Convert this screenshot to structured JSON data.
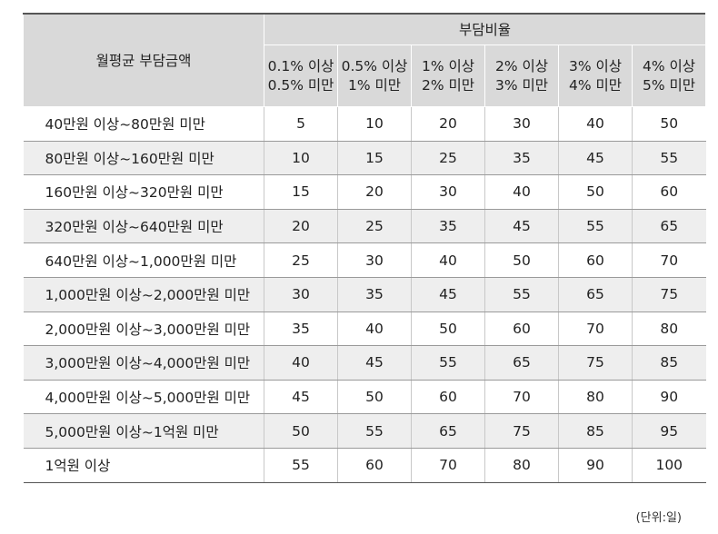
{
  "header": {
    "row_label": "월평균 부담금액",
    "group_label": "부담비율",
    "columns": [
      {
        "line1": "0.1% 이상",
        "line2": "0.5% 미만"
      },
      {
        "line1": "0.5% 이상",
        "line2": "1% 미만"
      },
      {
        "line1": "1% 이상",
        "line2": "2% 미만"
      },
      {
        "line1": "2% 이상",
        "line2": "3% 미만"
      },
      {
        "line1": "3% 이상",
        "line2": "4% 미만"
      },
      {
        "line1": "4% 이상",
        "line2": "5% 미만"
      }
    ]
  },
  "rows": [
    {
      "label": "40만원 이상~80만원 미만",
      "values": [
        "5",
        "10",
        "20",
        "30",
        "40",
        "50"
      ]
    },
    {
      "label": "80만원 이상~160만원 미만",
      "values": [
        "10",
        "15",
        "25",
        "35",
        "45",
        "55"
      ]
    },
    {
      "label": "160만원 이상~320만원 미만",
      "values": [
        "15",
        "20",
        "30",
        "40",
        "50",
        "60"
      ]
    },
    {
      "label": "320만원 이상~640만원 미만",
      "values": [
        "20",
        "25",
        "35",
        "45",
        "55",
        "65"
      ]
    },
    {
      "label": "640만원 이상~1,000만원 미만",
      "values": [
        "25",
        "30",
        "40",
        "50",
        "60",
        "70"
      ]
    },
    {
      "label": "1,000만원 이상~2,000만원 미만",
      "values": [
        "30",
        "35",
        "45",
        "55",
        "65",
        "75"
      ]
    },
    {
      "label": "2,000만원 이상~3,000만원 미만",
      "values": [
        "35",
        "40",
        "50",
        "60",
        "70",
        "80"
      ]
    },
    {
      "label": "3,000만원 이상~4,000만원 미만",
      "values": [
        "40",
        "45",
        "55",
        "65",
        "75",
        "85"
      ]
    },
    {
      "label": "4,000만원 이상~5,000만원 미만",
      "values": [
        "45",
        "50",
        "60",
        "70",
        "80",
        "90"
      ]
    },
    {
      "label": "5,000만원 이상~1억원 미만",
      "values": [
        "50",
        "55",
        "65",
        "75",
        "85",
        "95"
      ]
    },
    {
      "label": "1억원 이상",
      "values": [
        "55",
        "60",
        "70",
        "80",
        "90",
        "100"
      ]
    }
  ],
  "unit_note": "(단위:일)"
}
